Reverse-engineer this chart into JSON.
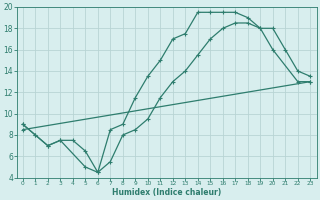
{
  "xlabel": "Humidex (Indice chaleur)",
  "bg_color": "#d8eeee",
  "line_color": "#2e7d6e",
  "grid_color": "#b8d4d4",
  "xlim": [
    -0.5,
    23.5
  ],
  "ylim": [
    4,
    20
  ],
  "yticks": [
    4,
    6,
    8,
    10,
    12,
    14,
    16,
    18,
    20
  ],
  "xticks": [
    0,
    1,
    2,
    3,
    4,
    5,
    6,
    7,
    8,
    9,
    10,
    11,
    12,
    13,
    14,
    15,
    16,
    17,
    18,
    19,
    20,
    21,
    22,
    23
  ],
  "line1_x": [
    0,
    1,
    2,
    3,
    4,
    5,
    6,
    7,
    8,
    9,
    10,
    11,
    12,
    13,
    14,
    15,
    16,
    17,
    18,
    19,
    20,
    22,
    23
  ],
  "line1_y": [
    9,
    8,
    7,
    7.5,
    7.5,
    6.5,
    4.5,
    8.5,
    9,
    11.5,
    13.5,
    15,
    17,
    17.5,
    19.5,
    19.5,
    19.5,
    19.5,
    19,
    18,
    16,
    13,
    13
  ],
  "line2_x": [
    0,
    1,
    2,
    3,
    5,
    6,
    7,
    8,
    9,
    10,
    11,
    12,
    13,
    14,
    15,
    16,
    17,
    18,
    19,
    20,
    21,
    22,
    23
  ],
  "line2_y": [
    9,
    8,
    7,
    7.5,
    5,
    4.5,
    5.5,
    8,
    8.5,
    9.5,
    11.5,
    13,
    14,
    15.5,
    17,
    18,
    18.5,
    18.5,
    18,
    18,
    16,
    14,
    13.5
  ],
  "line3_x": [
    0,
    23
  ],
  "line3_y": [
    8.5,
    13
  ]
}
